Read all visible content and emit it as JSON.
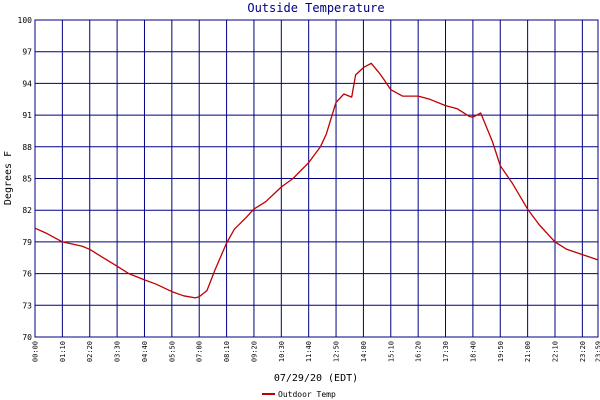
{
  "chart_data": {
    "type": "line",
    "title": "Outside Temperature",
    "xlabel": "07/29/20 (EDT)",
    "ylabel": "Degrees F",
    "ylim": [
      70,
      100
    ],
    "y_ticks": [
      "70",
      "73",
      "76",
      "79",
      "82",
      "85",
      "88",
      "91",
      "94",
      "97",
      "100"
    ],
    "x_ticks": [
      "00:00",
      "01:10",
      "02:20",
      "03:30",
      "04:40",
      "05:50",
      "07:00",
      "08:10",
      "09:20",
      "10:30",
      "11:40",
      "12:50",
      "14:00",
      "15:10",
      "16:20",
      "17:30",
      "18:40",
      "19:50",
      "21:00",
      "22:10",
      "23:20",
      "23:59"
    ],
    "grid": true,
    "legend_position": "bottom-left",
    "series": [
      {
        "name": "Outdoor Temp",
        "color": "#c00000",
        "x": [
          "00:00",
          "00:30",
          "01:10",
          "02:00",
          "02:20",
          "02:50",
          "03:30",
          "04:00",
          "04:40",
          "05:10",
          "05:50",
          "06:20",
          "06:50",
          "07:00",
          "07:20",
          "07:40",
          "08:10",
          "08:30",
          "09:00",
          "09:20",
          "09:50",
          "10:30",
          "11:00",
          "11:40",
          "12:10",
          "12:25",
          "12:40",
          "12:50",
          "13:10",
          "13:30",
          "13:40",
          "14:00",
          "14:20",
          "14:40",
          "14:50",
          "15:10",
          "15:40",
          "16:20",
          "16:50",
          "17:30",
          "18:00",
          "18:30",
          "18:40",
          "19:00",
          "19:30",
          "19:50",
          "20:20",
          "21:00",
          "21:30",
          "22:10",
          "22:40",
          "23:20",
          "23:59"
        ],
        "values": [
          80.3,
          79.8,
          79.0,
          78.6,
          78.3,
          77.6,
          76.7,
          76.0,
          75.4,
          75.0,
          74.3,
          73.9,
          73.7,
          73.8,
          74.4,
          76.3,
          78.9,
          80.2,
          81.3,
          82.1,
          82.8,
          84.2,
          85.0,
          86.5,
          88.0,
          89.2,
          91.0,
          92.2,
          93.0,
          92.7,
          94.8,
          95.5,
          95.9,
          95.0,
          94.5,
          93.4,
          92.8,
          92.8,
          92.5,
          91.9,
          91.6,
          90.9,
          90.8,
          91.2,
          88.5,
          86.2,
          84.6,
          82.1,
          80.6,
          79.0,
          78.3,
          77.8,
          77.3
        ]
      }
    ]
  }
}
